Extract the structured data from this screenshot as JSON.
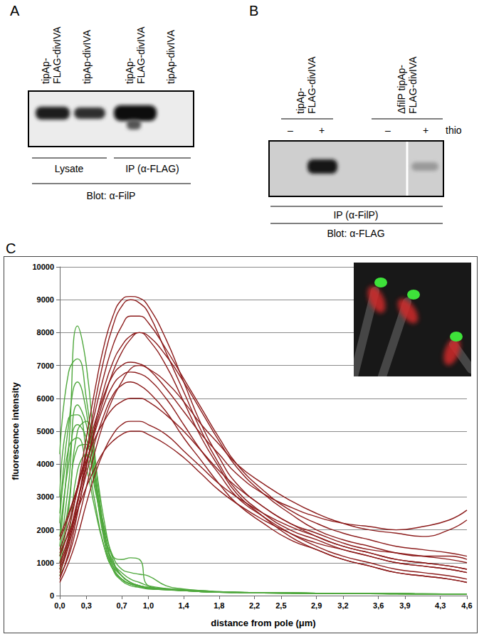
{
  "panels": {
    "A": {
      "label": "A",
      "lanes": [
        [
          "tipAp-",
          "FLAG-divIVA"
        ],
        [
          "tipAp-divIVA"
        ],
        [
          "tipAp-",
          "FLAG-divIVA"
        ],
        [
          "tipAp-divIVA"
        ]
      ],
      "groups": [
        "Lysate",
        "IP (α-FLAG)"
      ],
      "blot": "Blot: α-FilP"
    },
    "B": {
      "label": "B",
      "lane_groups": [
        [
          "tipAp-",
          "FLAG-divIVA"
        ],
        [
          "ΔfilP tipAp-",
          "FLAG-divIVA"
        ]
      ],
      "treatment": [
        "–",
        "+",
        "–",
        "+"
      ],
      "treatment_label": "thio",
      "group": "IP (α-FilP)",
      "blot": "Blot: α-FLAG"
    },
    "C": {
      "label": "C"
    }
  },
  "chart_data": {
    "type": "line",
    "x_label": "distance from pole (μm)",
    "y_label": "fluorescence intensity",
    "x": [
      0,
      0.1,
      0.2,
      0.3,
      0.4,
      0.5,
      0.6,
      0.7,
      0.8,
      0.9,
      1.0,
      1.2,
      1.4,
      1.6,
      1.8,
      2.0,
      2.3,
      2.6,
      2.9,
      3.2,
      3.5,
      3.8,
      4.1,
      4.4,
      4.6
    ],
    "series": [
      {
        "color": "#4fa83d",
        "values": [
          1500,
          4500,
          8200,
          7000,
          4200,
          2000,
          900,
          500,
          350,
          300,
          250,
          200,
          150,
          120,
          100,
          100,
          80,
          80,
          70,
          70,
          60,
          60,
          60,
          50,
          50
        ]
      },
      {
        "color": "#4fa83d",
        "values": [
          4300,
          6800,
          7200,
          6000,
          3800,
          1800,
          800,
          450,
          300,
          250,
          200,
          180,
          150,
          120,
          100,
          90,
          80,
          70,
          70,
          60,
          60,
          60,
          50,
          50,
          50
        ]
      },
      {
        "color": "#4fa83d",
        "values": [
          2500,
          5200,
          6500,
          5600,
          3500,
          1700,
          900,
          600,
          400,
          300,
          250,
          200,
          160,
          130,
          110,
          100,
          90,
          80,
          70,
          60,
          60,
          60,
          50,
          50,
          50
        ]
      },
      {
        "color": "#4fa83d",
        "values": [
          1200,
          3400,
          5800,
          5200,
          3600,
          2000,
          1200,
          1100,
          1150,
          1100,
          300,
          200,
          150,
          130,
          110,
          100,
          90,
          80,
          70,
          60,
          60,
          60,
          50,
          50,
          50
        ]
      },
      {
        "color": "#4fa83d",
        "values": [
          3000,
          5400,
          5500,
          4400,
          2800,
          1500,
          800,
          500,
          350,
          280,
          220,
          180,
          150,
          120,
          100,
          90,
          80,
          70,
          60,
          60,
          60,
          50,
          50,
          50,
          50
        ]
      },
      {
        "color": "#4fa83d",
        "values": [
          800,
          2600,
          5000,
          5300,
          4000,
          2300,
          1100,
          600,
          400,
          300,
          250,
          200,
          160,
          130,
          110,
          100,
          90,
          80,
          70,
          60,
          60,
          60,
          50,
          50,
          50
        ]
      },
      {
        "color": "#4fa83d",
        "values": [
          1800,
          4000,
          5200,
          4800,
          3300,
          1900,
          1000,
          700,
          500,
          400,
          300,
          220,
          180,
          150,
          120,
          100,
          90,
          80,
          70,
          60,
          60,
          60,
          50,
          50,
          50
        ]
      },
      {
        "color": "#4fa83d",
        "values": [
          1000,
          2800,
          4500,
          4600,
          3500,
          2100,
          1200,
          800,
          700,
          650,
          600,
          300,
          200,
          150,
          120,
          100,
          90,
          80,
          70,
          60,
          60,
          60,
          50,
          50,
          50
        ]
      },
      {
        "color": "#4fa83d",
        "values": [
          2200,
          4500,
          4800,
          3900,
          2600,
          1500,
          800,
          500,
          350,
          280,
          220,
          180,
          150,
          120,
          100,
          90,
          80,
          70,
          60,
          60,
          60,
          50,
          50,
          50,
          50
        ]
      },
      {
        "color": "#4fa83d",
        "values": [
          600,
          1800,
          3800,
          4300,
          3200,
          1900,
          1000,
          600,
          400,
          300,
          250,
          200,
          160,
          130,
          110,
          100,
          90,
          80,
          70,
          60,
          60,
          60,
          50,
          50,
          50
        ]
      },
      {
        "color": "#8c1c1c",
        "values": [
          1200,
          2000,
          3300,
          4800,
          6300,
          7600,
          8500,
          9000,
          9100,
          9050,
          8800,
          7800,
          6500,
          5200,
          4200,
          3400,
          2700,
          2200,
          1800,
          1500,
          1300,
          1100,
          1000,
          900,
          800
        ]
      },
      {
        "color": "#8c1c1c",
        "values": [
          800,
          1600,
          2800,
          4300,
          5900,
          7200,
          8200,
          8800,
          9000,
          8900,
          8600,
          7400,
          6200,
          5000,
          4000,
          3200,
          2500,
          2000,
          1700,
          1400,
          1200,
          1000,
          900,
          800,
          700
        ]
      },
      {
        "color": "#8c1c1c",
        "values": [
          1700,
          2400,
          3300,
          4400,
          5600,
          6700,
          7600,
          8200,
          8500,
          8500,
          8300,
          7500,
          6600,
          5700,
          4800,
          4000,
          3200,
          2600,
          2200,
          1900,
          1700,
          1500,
          1400,
          1300,
          1200
        ]
      },
      {
        "color": "#8c1c1c",
        "values": [
          500,
          1300,
          2500,
          3900,
          5200,
          6300,
          7100,
          7600,
          7900,
          8000,
          7800,
          7000,
          5900,
          4800,
          3900,
          3100,
          2400,
          1800,
          1400,
          1100,
          900,
          700,
          600,
          500,
          400
        ]
      },
      {
        "color": "#8c1c1c",
        "values": [
          1400,
          2200,
          3200,
          4300,
          5300,
          6100,
          6700,
          7000,
          7100,
          7050,
          6900,
          6300,
          5600,
          4900,
          4300,
          3700,
          3100,
          2700,
          2400,
          2200,
          2100,
          2000,
          2100,
          2300,
          2600
        ]
      },
      {
        "color": "#8c1c1c",
        "values": [
          1000,
          1800,
          2900,
          4000,
          5000,
          5800,
          6400,
          6700,
          6800,
          6750,
          6600,
          6000,
          5200,
          4400,
          3700,
          3000,
          2400,
          1900,
          1500,
          1200,
          1000,
          800,
          700,
          600,
          500
        ]
      },
      {
        "color": "#8c1c1c",
        "values": [
          600,
          1200,
          2200,
          3300,
          4400,
          5300,
          6000,
          6500,
          6900,
          7000,
          6900,
          6500,
          5900,
          5200,
          4600,
          4000,
          3400,
          2900,
          2500,
          2200,
          2000,
          1900,
          1800,
          2000,
          2300
        ]
      },
      {
        "color": "#8c1c1c",
        "values": [
          1800,
          2500,
          3300,
          4100,
          4800,
          5300,
          5700,
          5900,
          6000,
          6000,
          5900,
          5500,
          5000,
          4400,
          3800,
          3300,
          2700,
          2200,
          1900,
          1600,
          1400,
          1300,
          1200,
          1100,
          1000
        ]
      },
      {
        "color": "#8c1c1c",
        "values": [
          400,
          1000,
          1800,
          2800,
          3700,
          4400,
          4900,
          5200,
          5300,
          5300,
          5200,
          4900,
          4400,
          3900,
          3400,
          3000,
          2500,
          2100,
          1800,
          1500,
          1300,
          1100,
          1000,
          900,
          800
        ]
      },
      {
        "color": "#8c1c1c",
        "values": [
          1300,
          1900,
          2600,
          3300,
          3900,
          4400,
          4700,
          4900,
          5000,
          5000,
          4900,
          4600,
          4200,
          3700,
          3200,
          2800,
          2300,
          1900,
          1600,
          1400,
          1200,
          1000,
          900,
          800,
          700
        ]
      },
      {
        "color": "#8c1c1c",
        "values": [
          900,
          1700,
          2800,
          4000,
          5100,
          6000,
          6800,
          7400,
          7800,
          8000,
          7900,
          7300,
          6500,
          5600,
          4700,
          3900,
          3100,
          2500,
          2000,
          1700,
          1500,
          1300,
          1200,
          1200,
          1100
        ]
      },
      {
        "color": "#8c1c1c",
        "values": [
          700,
          1500,
          2600,
          3700,
          4700,
          5500,
          6100,
          6400,
          6500,
          6400,
          6200,
          5600,
          4800,
          4100,
          3400,
          2800,
          2200,
          1700,
          1400,
          1100,
          900,
          700,
          600,
          500,
          400
        ]
      }
    ],
    "xlim": [
      0,
      4.6
    ],
    "xticks": [
      {
        "value": 0,
        "label": "0,0"
      },
      {
        "value": 0.3,
        "label": "0,3"
      },
      {
        "value": 0.7,
        "label": "0,7"
      },
      {
        "value": 1.0,
        "label": "1,0"
      },
      {
        "value": 1.4,
        "label": "1,4"
      },
      {
        "value": 1.8,
        "label": "1,8"
      },
      {
        "value": 2.2,
        "label": "2,2"
      },
      {
        "value": 2.5,
        "label": "2,5"
      },
      {
        "value": 2.9,
        "label": "2,9"
      },
      {
        "value": 3.2,
        "label": "3,2"
      },
      {
        "value": 3.6,
        "label": "3,6"
      },
      {
        "value": 3.9,
        "label": "3,9"
      },
      {
        "value": 4.3,
        "label": "4,3"
      },
      {
        "value": 4.6,
        "label": "4,6"
      }
    ],
    "ylim": [
      0,
      10000
    ],
    "yticks": [
      0,
      1000,
      2000,
      3000,
      4000,
      5000,
      6000,
      7000,
      8000,
      9000,
      10000
    ],
    "grid": true
  }
}
